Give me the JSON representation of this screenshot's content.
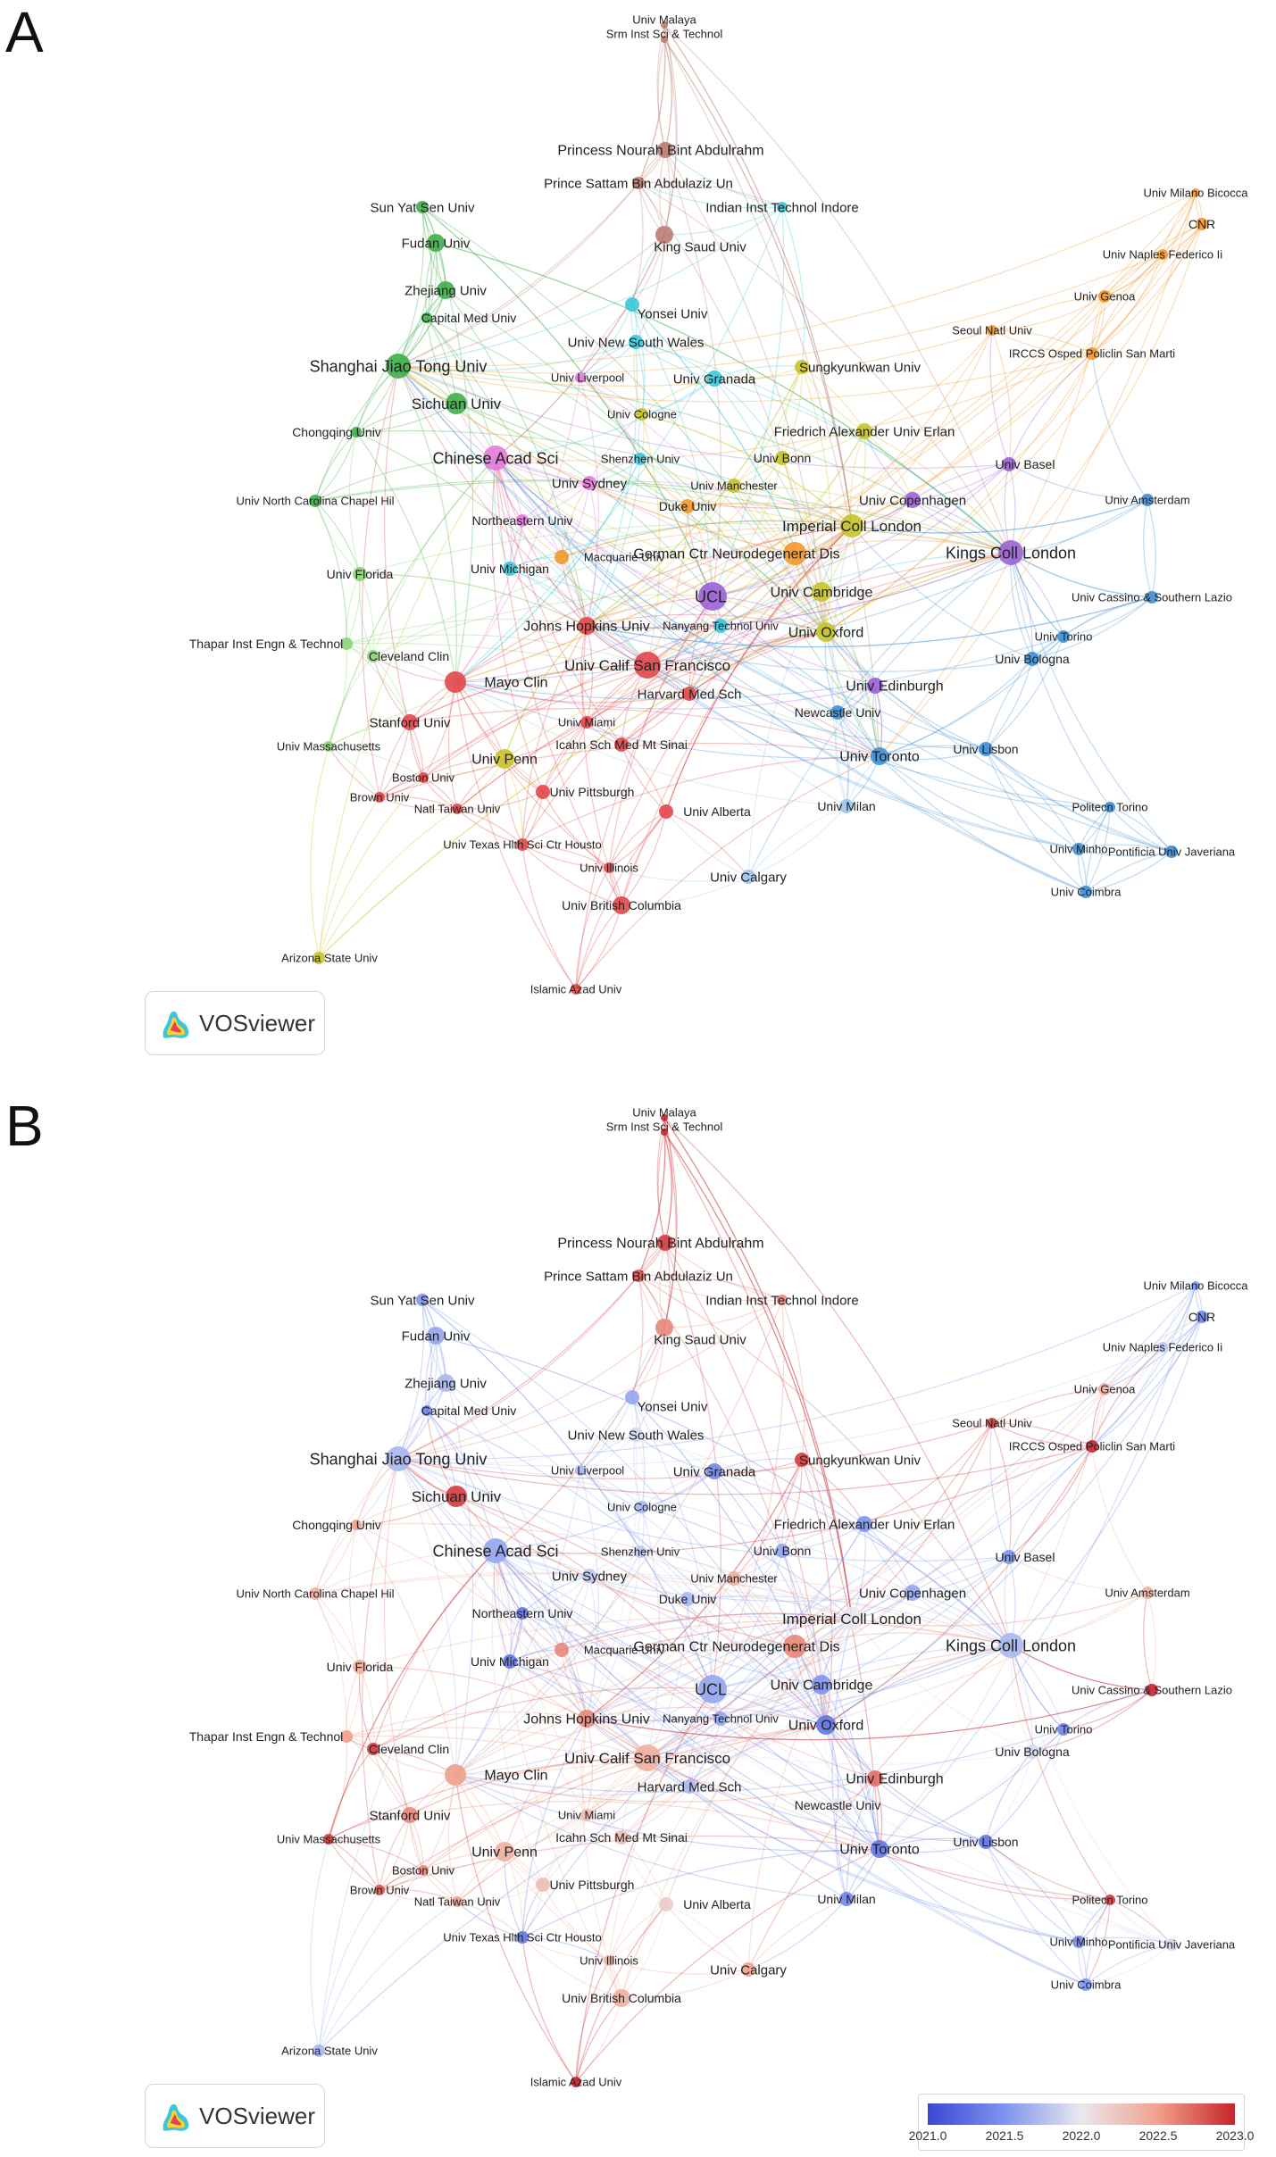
{
  "panels": {
    "a_label": "A",
    "b_label": "B",
    "logo_text": "VOSviewer"
  },
  "colorbar": {
    "ticks": [
      "2021.0",
      "2021.5",
      "2022.0",
      "2022.5",
      "2023.0"
    ],
    "colors": [
      "#3c46d6",
      "#7d95ee",
      "#e9e9ee",
      "#f0a08c",
      "#c8232c"
    ]
  },
  "cluster_colors": {
    "red": "#e2474a",
    "green": "#3fae49",
    "blue": "#3d8fd6",
    "yellow": "#c8c32a",
    "purple": "#9b62d6",
    "cyan": "#3cc6dc",
    "orange": "#f2982e",
    "brown": "#bb7c73",
    "pink": "#e47ad9",
    "lightgreen": "#8fd27a",
    "lightblue": "#9cc4ec"
  },
  "network": {
    "nodes": [
      {
        "label": "Univ Malaya",
        "cluster": "brown",
        "year": 2023.0
      },
      {
        "label": "Srm Inst Sci & Technol",
        "cluster": "brown",
        "year": 2023.0
      },
      {
        "label": "Princess Nourah Bint Abdulrahm",
        "cluster": "brown",
        "year": 2022.9
      },
      {
        "label": "Prince Sattam Bin Abdulaziz Un",
        "cluster": "brown",
        "year": 2022.8
      },
      {
        "label": "Indian Inst Technol Indore",
        "cluster": "cyan",
        "year": 2022.6
      },
      {
        "label": "King Saud Univ",
        "cluster": "brown",
        "year": 2022.6
      },
      {
        "label": "Yonsei Univ",
        "cluster": "cyan",
        "year": 2021.6
      },
      {
        "label": "Univ New South Wales",
        "cluster": "cyan",
        "year": 2021.9
      },
      {
        "label": "Univ Granada",
        "cluster": "cyan",
        "year": 2021.4
      },
      {
        "label": "Sungkyunkwan Univ",
        "cluster": "yellow",
        "year": 2022.9
      },
      {
        "label": "Sun Yat Sen Univ",
        "cluster": "green",
        "year": 2021.5
      },
      {
        "label": "Fudan Univ",
        "cluster": "green",
        "year": 2021.6
      },
      {
        "label": "Zhejiang Univ",
        "cluster": "green",
        "year": 2021.7
      },
      {
        "label": "Capital Med Univ",
        "cluster": "green",
        "year": 2021.4
      },
      {
        "label": "Shanghai Jiao Tong Univ",
        "cluster": "green",
        "year": 2021.7
      },
      {
        "label": "Sichuan Univ",
        "cluster": "green",
        "year": 2022.9
      },
      {
        "label": "Chongqing Univ",
        "cluster": "green",
        "year": 2022.5
      },
      {
        "label": "Univ North Carolina Chapel Hil",
        "cluster": "green",
        "year": 2022.4
      },
      {
        "label": "Univ Florida",
        "cluster": "lightgreen",
        "year": 2022.4
      },
      {
        "label": "Thapar Inst Engn & Technol",
        "cluster": "lightgreen",
        "year": 2022.5
      },
      {
        "label": "Cleveland Clin",
        "cluster": "lightgreen",
        "year": 2022.9
      },
      {
        "label": "Univ Massachusetts",
        "cluster": "lightgreen",
        "year": 2022.9
      },
      {
        "label": "Chinese Acad Sci",
        "cluster": "pink",
        "year": 2021.6
      },
      {
        "label": "Univ Liverpool",
        "cluster": "pink",
        "year": 2021.7
      },
      {
        "label": "Univ Cologne",
        "cluster": "yellow",
        "year": 2021.7
      },
      {
        "label": "Shenzhen Univ",
        "cluster": "cyan",
        "year": 2021.8
      },
      {
        "label": "Univ Sydney",
        "cluster": "pink",
        "year": 2021.8
      },
      {
        "label": "Northeastern Univ",
        "cluster": "pink",
        "year": 2021.3
      },
      {
        "label": "Univ Michigan",
        "cluster": "cyan",
        "year": 2021.3
      },
      {
        "label": "Macquarie Univ",
        "cluster": "orange",
        "year": 2022.6
      },
      {
        "label": "Johns Hopkins Univ",
        "cluster": "red",
        "year": 2022.6
      },
      {
        "label": "Univ Calif San Francisco",
        "cluster": "red",
        "year": 2022.4
      },
      {
        "label": "Mayo Clin",
        "cluster": "red",
        "year": 2022.5
      },
      {
        "label": "Harvard Med Sch",
        "cluster": "red",
        "year": 2021.7
      },
      {
        "label": "Stanford Univ",
        "cluster": "red",
        "year": 2022.6
      },
      {
        "label": "Univ Miami",
        "cluster": "red",
        "year": 2022.3
      },
      {
        "label": "Icahn Sch Med Mt Sinai",
        "cluster": "red",
        "year": 2022.3
      },
      {
        "label": "Univ Penn",
        "cluster": "yellow",
        "year": 2022.4
      },
      {
        "label": "Boston Univ",
        "cluster": "red",
        "year": 2022.6
      },
      {
        "label": "Brown Univ",
        "cluster": "red",
        "year": 2022.8
      },
      {
        "label": "Natl Taiwan Univ",
        "cluster": "red",
        "year": 2022.5
      },
      {
        "label": "Univ Pittsburgh",
        "cluster": "red",
        "year": 2022.3
      },
      {
        "label": "Univ Alberta",
        "cluster": "red",
        "year": 2022.2
      },
      {
        "label": "Univ Texas Hlth Sci Ctr Housto",
        "cluster": "red",
        "year": 2021.3
      },
      {
        "label": "Univ Illinois",
        "cluster": "red",
        "year": 2022.4
      },
      {
        "label": "Univ British Columbia",
        "cluster": "red",
        "year": 2022.4
      },
      {
        "label": "Univ Calgary",
        "cluster": "lightblue",
        "year": 2022.5
      },
      {
        "label": "Arizona State Univ",
        "cluster": "yellow",
        "year": 2021.7
      },
      {
        "label": "Islamic Azad Univ",
        "cluster": "red",
        "year": 2023.0
      },
      {
        "label": "UCL",
        "cluster": "purple",
        "year": 2021.6
      },
      {
        "label": "Univ Manchester",
        "cluster": "yellow",
        "year": 2022.4
      },
      {
        "label": "Univ Bonn",
        "cluster": "yellow",
        "year": 2021.6
      },
      {
        "label": "Duke Univ",
        "cluster": "orange",
        "year": 2021.7
      },
      {
        "label": "Friedrich Alexander Univ Erlan",
        "cluster": "yellow",
        "year": 2021.5
      },
      {
        "label": "Imperial Coll London",
        "cluster": "yellow",
        "year": 2022.0
      },
      {
        "label": "German Ctr Neurodegenerat Dis",
        "cluster": "orange",
        "year": 2022.6
      },
      {
        "label": "Univ Cambridge",
        "cluster": "yellow",
        "year": 2021.5
      },
      {
        "label": "Nanyang Technol Univ",
        "cluster": "cyan",
        "year": 2021.6
      },
      {
        "label": "Univ Oxford",
        "cluster": "yellow",
        "year": 2021.3
      },
      {
        "label": "Univ Edinburgh",
        "cluster": "purple",
        "year": 2022.7
      },
      {
        "label": "Newcastle Univ",
        "cluster": "blue",
        "year": 2022.0
      },
      {
        "label": "Univ Toronto",
        "cluster": "blue",
        "year": 2021.3
      },
      {
        "label": "Univ Milan",
        "cluster": "lightblue",
        "year": 2021.4
      },
      {
        "label": "Univ Copenhagen",
        "cluster": "purple",
        "year": 2021.6
      },
      {
        "label": "Univ Basel",
        "cluster": "purple",
        "year": 2021.5
      },
      {
        "label": "Kings Coll London",
        "cluster": "purple",
        "year": 2021.7
      },
      {
        "label": "Univ Amsterdam",
        "cluster": "blue",
        "year": 2022.4
      },
      {
        "label": "Univ Cassino & Southern Lazio",
        "cluster": "blue",
        "year": 2023.0
      },
      {
        "label": "Univ Torino",
        "cluster": "blue",
        "year": 2021.4
      },
      {
        "label": "Univ Bologna",
        "cluster": "blue",
        "year": 2021.9
      },
      {
        "label": "Univ Lisbon",
        "cluster": "blue",
        "year": 2021.3
      },
      {
        "label": "Politecn Torino",
        "cluster": "blue",
        "year": 2022.9
      },
      {
        "label": "Univ Minho",
        "cluster": "blue",
        "year": 2021.4
      },
      {
        "label": "Pontificia Univ Javeriana",
        "cluster": "blue",
        "year": 2021.9
      },
      {
        "label": "Univ Coimbra",
        "cluster": "blue",
        "year": 2021.5
      },
      {
        "label": "Univ Milano Bicocca",
        "cluster": "orange",
        "year": 2021.5
      },
      {
        "label": "CNR",
        "cluster": "orange",
        "year": 2021.4
      },
      {
        "label": "Univ Naples Federico Ii",
        "cluster": "orange",
        "year": 2021.8
      },
      {
        "label": "Univ Genoa",
        "cluster": "orange",
        "year": 2022.4
      },
      {
        "label": "Seoul Natl Univ",
        "cluster": "orange",
        "year": 2022.9
      },
      {
        "label": "IRCCS Osped Policlin San Marti",
        "cluster": "orange",
        "year": 2023.0
      }
    ]
  }
}
